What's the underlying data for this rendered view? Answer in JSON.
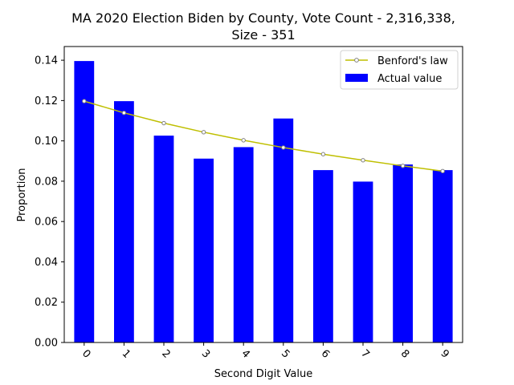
{
  "chart_data": {
    "type": "bar",
    "title_lines": [
      "MA 2020 Election Biden by County,  Vote Count - 2,316,338,",
      "Size - 351"
    ],
    "xlabel": "Second Digit Value",
    "ylabel": "Proportion",
    "categories": [
      "0",
      "1",
      "2",
      "3",
      "4",
      "5",
      "6",
      "7",
      "8",
      "9"
    ],
    "ylim": [
      0,
      0.1468
    ],
    "yticks": [
      "0.00",
      "0.02",
      "0.04",
      "0.06",
      "0.08",
      "0.10",
      "0.12",
      "0.14"
    ],
    "grid": false,
    "legend_position": "top-right",
    "series": [
      {
        "name": "Actual value",
        "kind": "bar",
        "color": "#0000ff",
        "values": [
          0.1396,
          0.1197,
          0.1026,
          0.0912,
          0.0969,
          0.1111,
          0.0855,
          0.0798,
          0.0883,
          0.0855
        ]
      },
      {
        "name": "Benford's law",
        "kind": "line",
        "color": "#bfbf00",
        "values": [
          0.1197,
          0.1139,
          0.1088,
          0.1043,
          0.1003,
          0.0967,
          0.0934,
          0.0904,
          0.0876,
          0.085
        ]
      }
    ]
  }
}
